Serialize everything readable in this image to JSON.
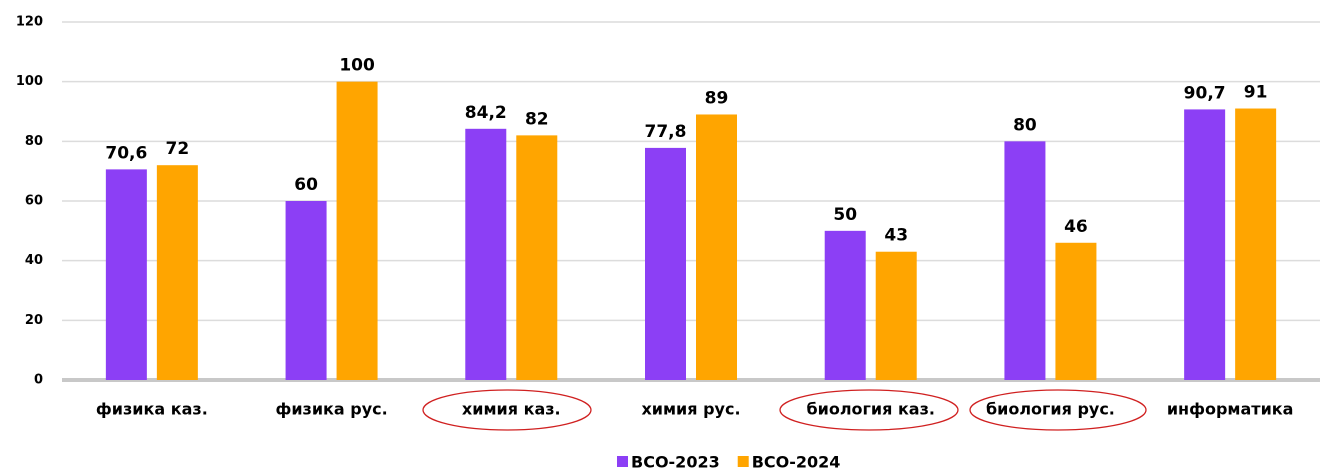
{
  "chart_data": {
    "type": "bar",
    "categories": [
      "физика каз.",
      "физика рус.",
      "химия каз.",
      "химия рус.",
      "биология каз.",
      "биология рус.",
      "информатика"
    ],
    "series": [
      {
        "name": "ВСО-2023",
        "color": "#8c3ff5",
        "values": [
          70.6,
          60,
          84.2,
          77.8,
          50,
          80,
          90.7
        ],
        "value_labels": [
          "70,6",
          "60",
          "84,2",
          "77,8",
          "50",
          "80",
          "90,7"
        ]
      },
      {
        "name": "ВСО-2024",
        "color": "#ffa500",
        "values": [
          72,
          100,
          82,
          89,
          43,
          46,
          91
        ]
      }
    ],
    "ylim": [
      0,
      120
    ],
    "yticks": [
      0,
      20,
      40,
      60,
      80,
      100,
      120
    ],
    "grid": true,
    "legend": "bottom"
  }
}
